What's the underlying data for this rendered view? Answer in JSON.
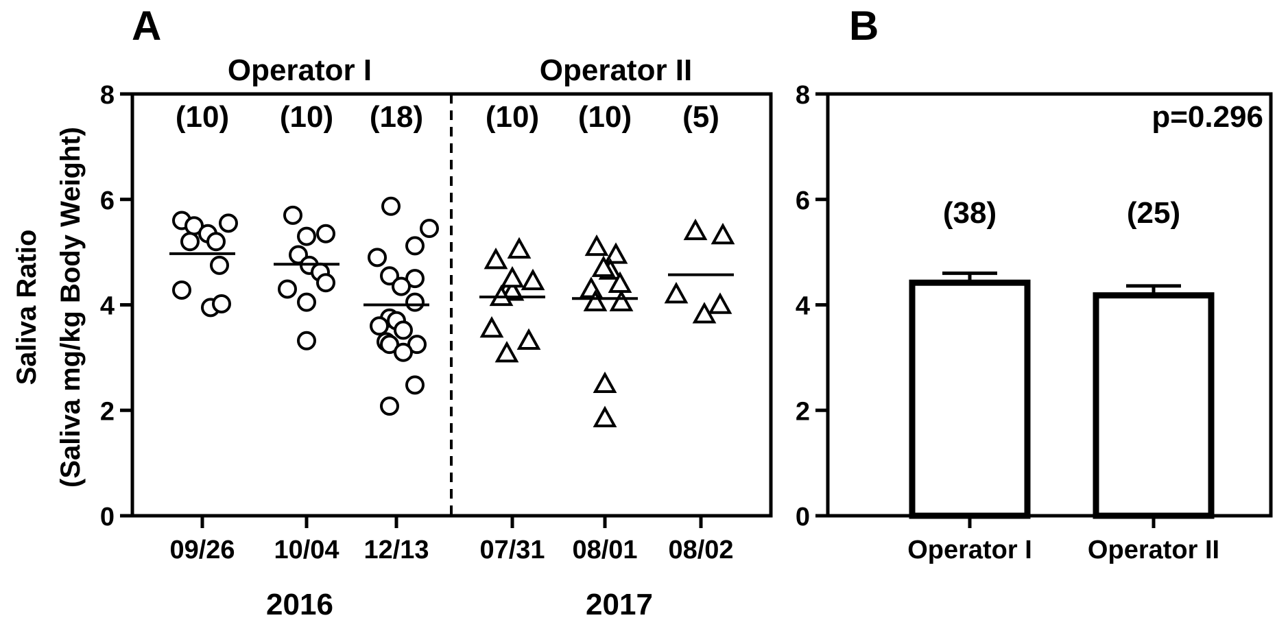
{
  "chart_data": [
    {
      "panel": "A",
      "type": "scatter",
      "ylabel_line1": "Saliva Ratio",
      "ylabel_line2": "(Saliva mg/kg Body Weight)",
      "ylim": [
        0,
        8
      ],
      "yticks": [
        "0",
        "2",
        "4",
        "6",
        "8"
      ],
      "groups": [
        {
          "name": "Operator I",
          "year": "2016",
          "marker": "circle",
          "categories": [
            {
              "label": "09/26",
              "n": "(10)",
              "mean": 4.97,
              "values": [
                5.6,
                5.5,
                5.35,
                5.55,
                5.2,
                5.2,
                4.75,
                4.28,
                3.95,
                4.02
              ]
            },
            {
              "label": "10/04",
              "n": "(10)",
              "mean": 4.77,
              "values": [
                5.7,
                5.35,
                5.3,
                4.95,
                4.75,
                4.62,
                4.3,
                4.42,
                4.05,
                3.32
              ]
            },
            {
              "label": "12/13",
              "n": "(18)",
              "mean": 4.0,
              "values": [
                5.87,
                5.45,
                5.12,
                4.9,
                4.55,
                4.5,
                4.35,
                4.05,
                3.75,
                3.7,
                3.6,
                3.52,
                3.3,
                3.25,
                3.25,
                3.1,
                2.48,
                2.08
              ]
            }
          ]
        },
        {
          "name": "Operator II",
          "year": "2017",
          "marker": "triangle",
          "categories": [
            {
              "label": "07/31",
              "n": "(10)",
              "mean": 4.15,
              "values": [
                5.05,
                4.85,
                4.45,
                4.35,
                4.25,
                4.15,
                3.55,
                3.32,
                3.08,
                4.5
              ]
            },
            {
              "label": "08/01",
              "n": "(10)",
              "mean": 4.12,
              "values": [
                5.1,
                4.95,
                4.65,
                4.4,
                4.3,
                4.05,
                4.05,
                2.5,
                1.85,
                4.7
              ]
            },
            {
              "label": "08/02",
              "n": "(5)",
              "mean": 4.57,
              "values": [
                5.4,
                5.32,
                4.2,
                4.0,
                3.82
              ]
            }
          ]
        }
      ]
    },
    {
      "panel": "B",
      "type": "bar",
      "ylim": [
        0,
        8
      ],
      "yticks": [
        "0",
        "2",
        "4",
        "6",
        "8"
      ],
      "annotation": "p=0.296",
      "categories": [
        "Operator I",
        "Operator II"
      ],
      "values": [
        4.42,
        4.18
      ],
      "error": [
        0.18,
        0.18
      ],
      "n": [
        "(38)",
        "(25)"
      ]
    }
  ]
}
